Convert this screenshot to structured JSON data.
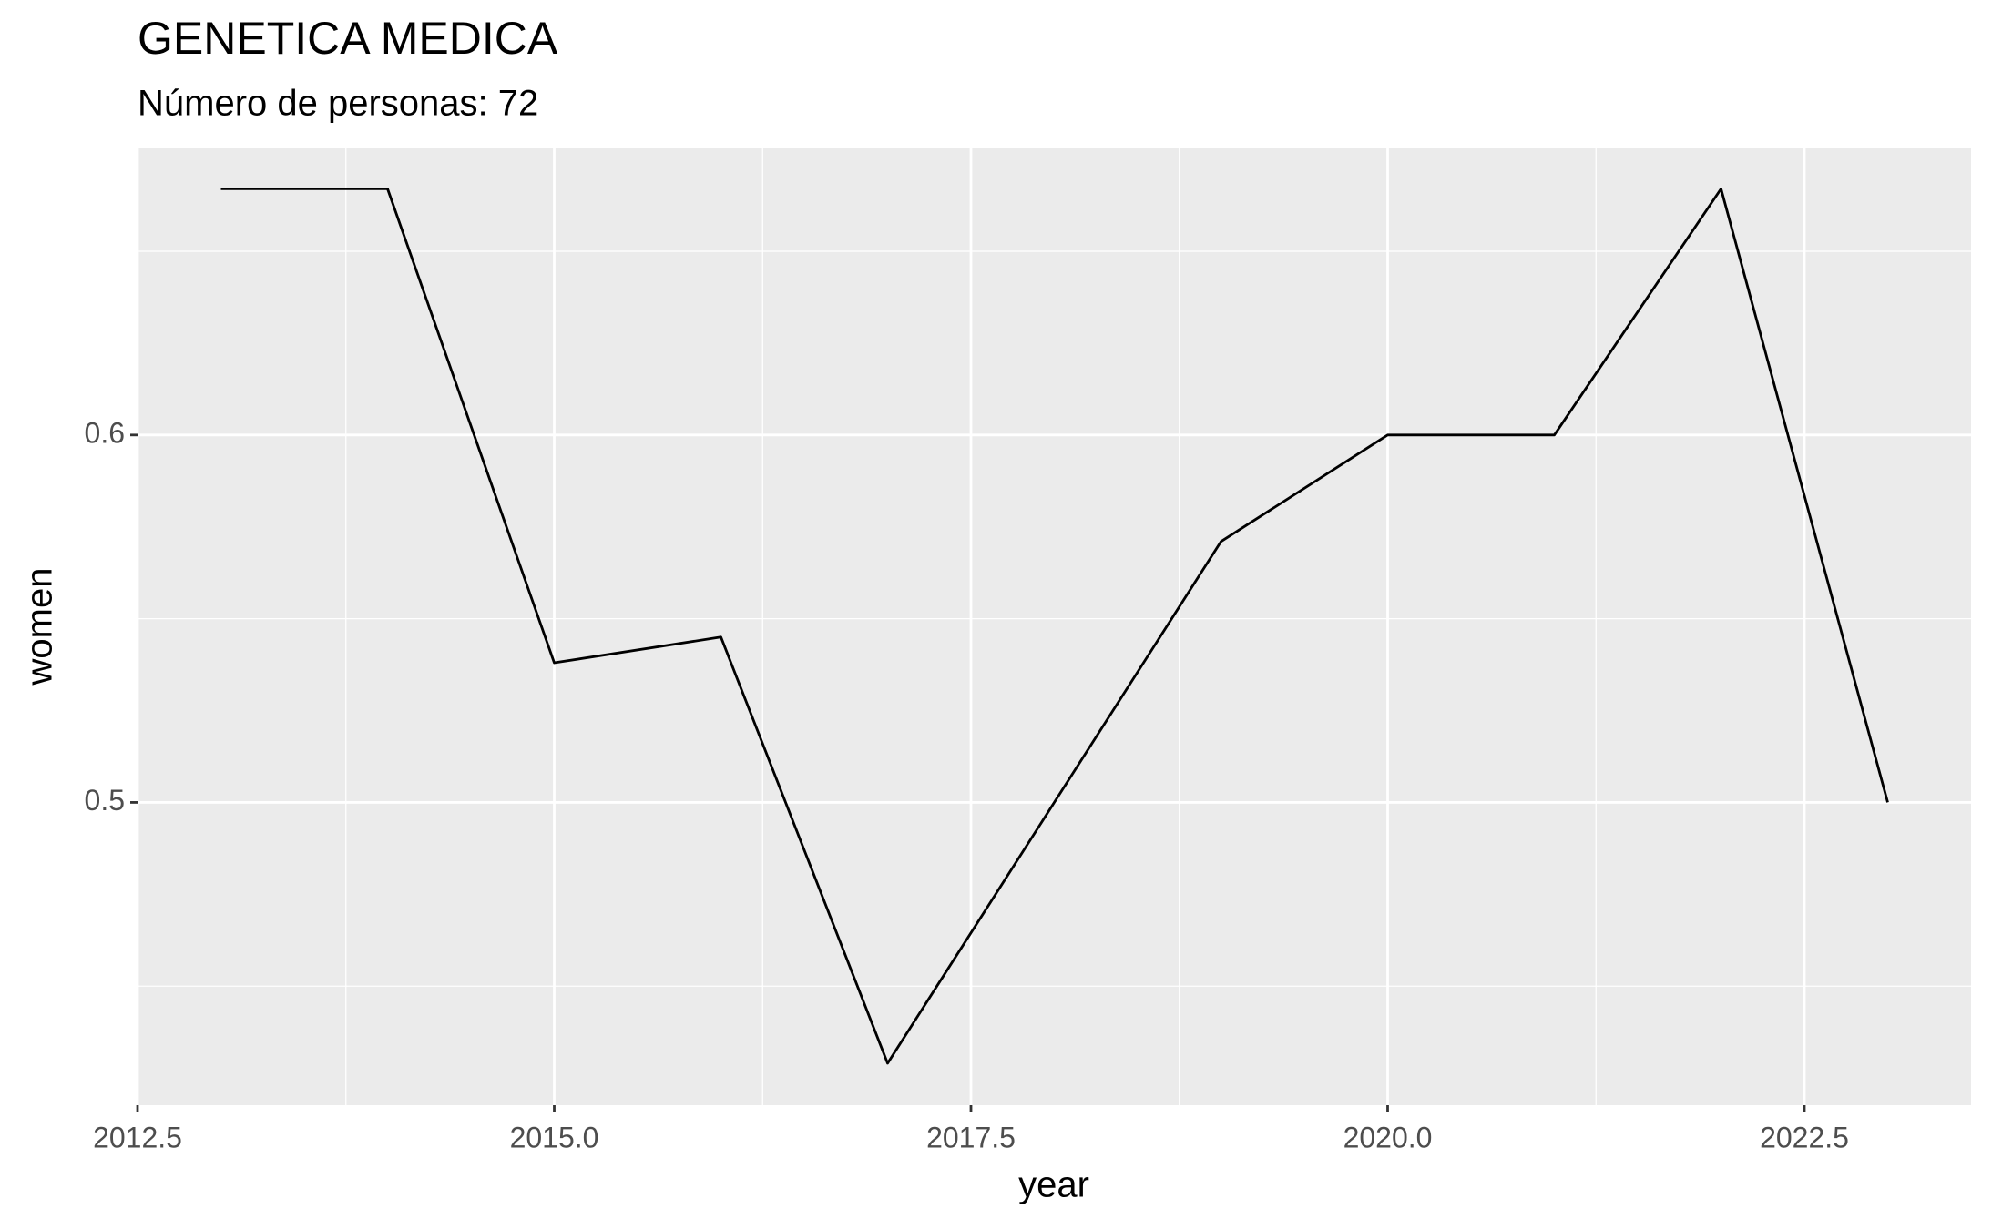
{
  "chart_data": {
    "type": "line",
    "title": "GENETICA MEDICA",
    "subtitle": "Número de personas: 72",
    "x_label": "year",
    "y_label": "women",
    "x": [
      2013,
      2014,
      2015,
      2016,
      2017,
      2018,
      2019,
      2020,
      2021,
      2022,
      2023
    ],
    "series": [
      {
        "name": "women",
        "color": "#000000",
        "values": [
          0.667,
          0.667,
          0.538,
          0.545,
          0.429,
          0.5,
          0.571,
          0.6,
          0.6,
          0.667,
          0.5
        ]
      }
    ],
    "xlim": [
      2012.5,
      2023.5
    ],
    "xticks": [
      2012.5,
      {
        "value": 2015,
        "label": "2015.0"
      },
      2017.5,
      {
        "value": 2020,
        "label": "2020.0"
      },
      2022.5
    ],
    "ylim": [
      0.4176,
      0.678
    ],
    "yticks": [
      0.5,
      0.6
    ],
    "grid": true
  }
}
